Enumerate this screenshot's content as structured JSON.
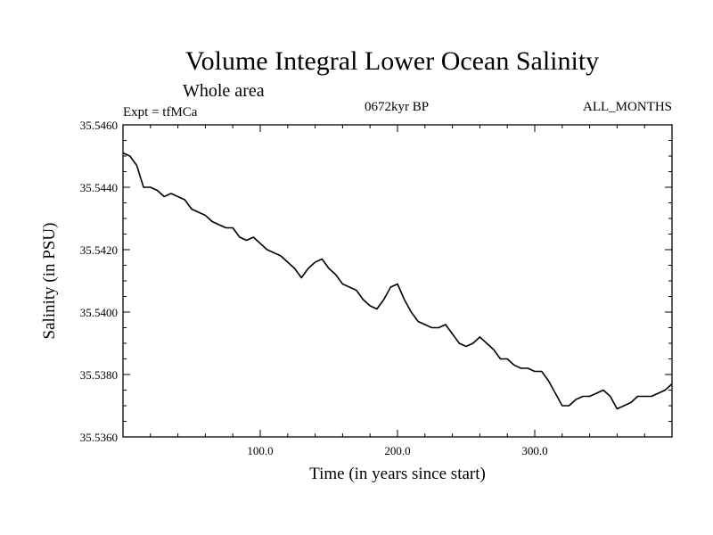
{
  "chart_data": {
    "type": "line",
    "title": "Volume Integral Lower Ocean Salinity",
    "subtitle": "Whole area",
    "experiment_label": "Expt = tfMCa",
    "period_label": "0672kyr BP",
    "months_label": "ALL_MONTHS",
    "xlabel": "Time (in years since start)",
    "ylabel": "Salinity (in PSU)",
    "xlim": [
      0,
      400
    ],
    "ylim": [
      35.536,
      35.546
    ],
    "x_tick_values": [
      100,
      200,
      300
    ],
    "x_tick_labels": [
      "100.0",
      "200.0",
      "300.0"
    ],
    "y_tick_values": [
      35.536,
      35.538,
      35.54,
      35.542,
      35.544,
      35.546
    ],
    "y_tick_labels": [
      "35.5360",
      "35.5380",
      "35.5400",
      "35.5420",
      "35.5440",
      "35.5460"
    ],
    "grid": false,
    "line_color": "#000000",
    "series": [
      {
        "x": [
          0,
          5,
          10,
          15,
          20,
          25,
          30,
          35,
          40,
          45,
          50,
          55,
          60,
          65,
          70,
          75,
          80,
          85,
          90,
          95,
          100,
          105,
          110,
          115,
          120,
          125,
          130,
          135,
          140,
          145,
          150,
          155,
          160,
          165,
          170,
          175,
          180,
          185,
          190,
          195,
          200,
          205,
          210,
          215,
          220,
          225,
          230,
          235,
          240,
          245,
          250,
          255,
          260,
          265,
          270,
          275,
          280,
          285,
          290,
          295,
          300,
          305,
          310,
          315,
          320,
          325,
          330,
          335,
          340,
          345,
          350,
          355,
          360,
          365,
          370,
          375,
          380,
          385,
          390,
          395,
          400
        ],
        "y": [
          35.5451,
          35.545,
          35.5447,
          35.544,
          35.544,
          35.5439,
          35.5437,
          35.5438,
          35.5437,
          35.5436,
          35.5433,
          35.5432,
          35.5431,
          35.5429,
          35.5428,
          35.5427,
          35.5427,
          35.5424,
          35.5423,
          35.5424,
          35.5422,
          35.542,
          35.5419,
          35.5418,
          35.5416,
          35.5414,
          35.5411,
          35.5414,
          35.5416,
          35.5417,
          35.5414,
          35.5412,
          35.5409,
          35.5408,
          35.5407,
          35.5404,
          35.5402,
          35.5401,
          35.5404,
          35.5408,
          35.5409,
          35.5404,
          35.54,
          35.5397,
          35.5396,
          35.5395,
          35.5395,
          35.5396,
          35.5393,
          35.539,
          35.5389,
          35.539,
          35.5392,
          35.539,
          35.5388,
          35.5385,
          35.5385,
          35.5383,
          35.5382,
          35.5382,
          35.5381,
          35.5381,
          35.5378,
          35.5374,
          35.537,
          35.537,
          35.5372,
          35.5373,
          35.5373,
          35.5374,
          35.5375,
          35.5373,
          35.5369,
          35.537,
          35.5371,
          35.5373,
          35.5373,
          35.5373,
          35.5374,
          35.5375,
          35.5377
        ]
      }
    ]
  }
}
